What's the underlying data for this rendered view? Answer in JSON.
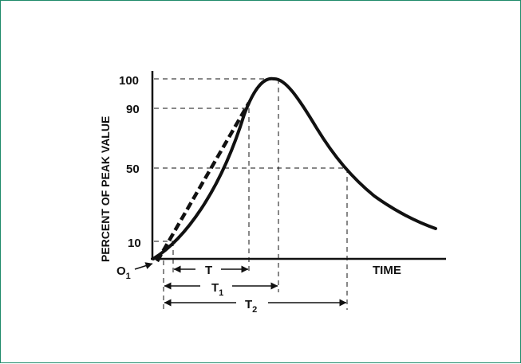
{
  "chart_data": {
    "type": "line",
    "title": "",
    "ylabel": "PERCENT OF PEAK VALUE",
    "xlabel": "TIME",
    "y_ticks": [
      "10",
      "50",
      "90",
      "100"
    ],
    "origin_label": "O",
    "origin_subscript": "1",
    "intervals": [
      {
        "main": "T",
        "sub": ""
      },
      {
        "main": "T",
        "sub": "1"
      },
      {
        "main": "T",
        "sub": "2"
      }
    ],
    "series": [
      {
        "style": "solid",
        "shape": "impulse waveform rising to peak then decaying"
      },
      {
        "style": "dashed",
        "shape": "linear front through 10% and 90% points"
      }
    ],
    "colors": {
      "ink": "#111111",
      "frame": "#1f8a6a"
    }
  }
}
